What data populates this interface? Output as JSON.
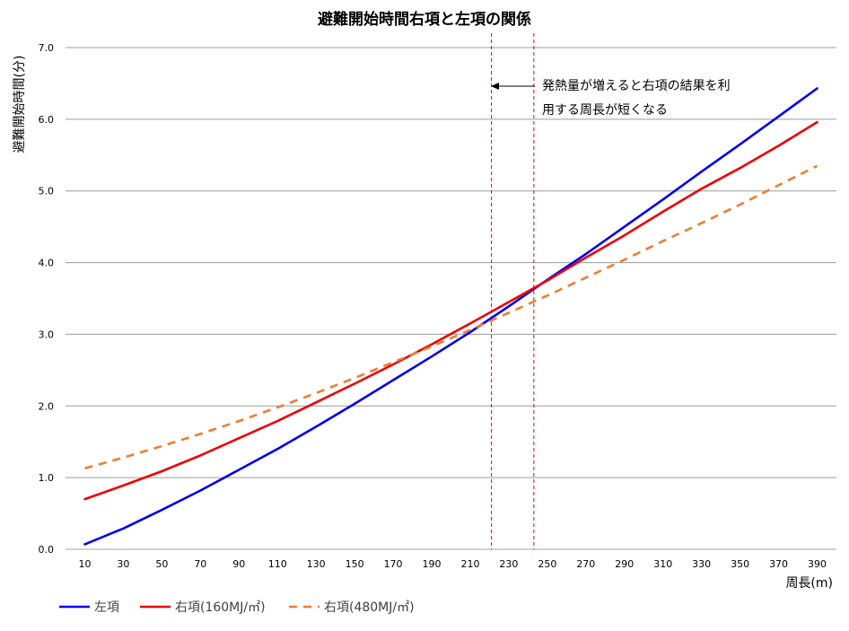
{
  "chart_data": {
    "type": "line",
    "title": "避難開始時間右項と左項の関係",
    "xlabel": "周長(m)",
    "ylabel": "避難開始時間(分)",
    "x": [
      10,
      30,
      50,
      70,
      90,
      110,
      130,
      150,
      170,
      190,
      210,
      230,
      250,
      270,
      290,
      310,
      330,
      350,
      370,
      390
    ],
    "x_tick_labels": [
      "10",
      "30",
      "50",
      "70",
      "90",
      "110",
      "130",
      "150",
      "170",
      "190",
      "210",
      "230",
      "250",
      "270",
      "290",
      "310",
      "330",
      "350",
      "370",
      "390"
    ],
    "ylim": [
      0,
      7
    ],
    "y_ticks": [
      0,
      1,
      2,
      3,
      4,
      5,
      6,
      7
    ],
    "y_tick_labels": [
      "0.0",
      "1.0",
      "2.0",
      "3.0",
      "4.0",
      "5.0",
      "6.0",
      "7.0"
    ],
    "grid": "horizontal",
    "legend_position": "bottom-left",
    "series": [
      {
        "name": "左項",
        "color": "#0000ee",
        "style": "solid",
        "values": [
          0.07,
          0.29,
          0.55,
          0.82,
          1.11,
          1.4,
          1.71,
          2.03,
          2.36,
          2.69,
          3.03,
          3.39,
          3.76,
          4.12,
          4.5,
          4.88,
          5.27,
          5.65,
          6.04,
          6.43
        ]
      },
      {
        "name": "右項(160MJ/㎡)",
        "color": "#ee0000",
        "style": "solid",
        "values": [
          0.7,
          0.89,
          1.09,
          1.31,
          1.55,
          1.79,
          2.05,
          2.31,
          2.58,
          2.86,
          3.15,
          3.45,
          3.75,
          4.07,
          4.38,
          4.71,
          5.03,
          5.32,
          5.63,
          5.96
        ]
      },
      {
        "name": "右項(480MJ/㎡)",
        "color": "#ed7d31",
        "style": "dashed",
        "values": [
          1.13,
          1.28,
          1.44,
          1.61,
          1.79,
          1.98,
          2.18,
          2.39,
          2.61,
          2.83,
          3.06,
          3.3,
          3.54,
          3.79,
          4.04,
          4.3,
          4.55,
          4.81,
          5.08,
          5.35
        ]
      }
    ],
    "vertical_lines": [
      {
        "x": 221,
        "color": "#ee0000",
        "style": "dashed"
      },
      {
        "x": 243,
        "color": "#ee0000",
        "style": "dashed"
      }
    ],
    "annotations": [
      {
        "text_lines": [
          "発熱量が増えると右項の結果を利",
          "用する周長が短くなる"
        ],
        "arrow": "left"
      }
    ]
  }
}
